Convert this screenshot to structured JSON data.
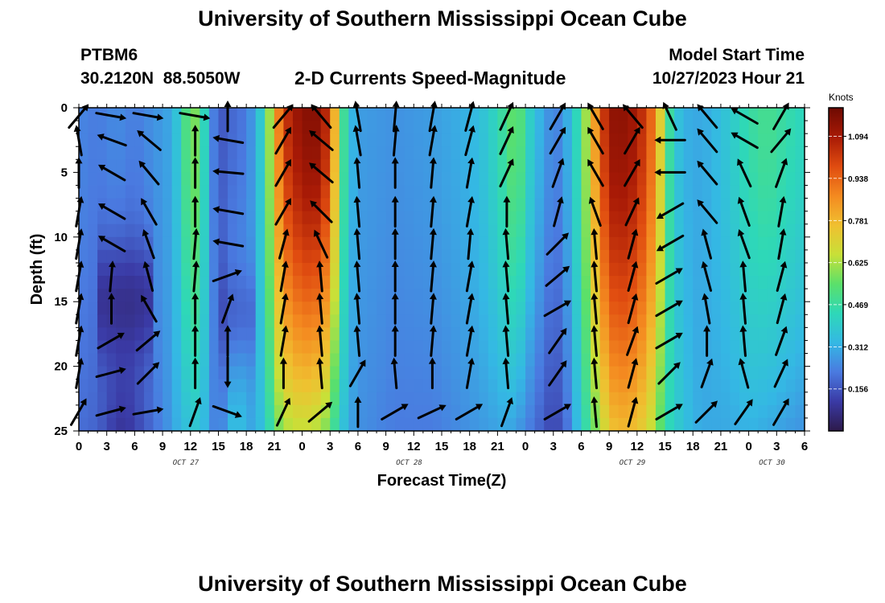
{
  "header": {
    "title": "University of Southern Mississippi Ocean Cube",
    "station": "PTBM6",
    "coords": "30.2120N  88.5050W",
    "chart_title": "2-D Currents Speed-Magnitude",
    "model_label": "Model Start Time",
    "model_time": "10/27/2023 Hour 21"
  },
  "footer": {
    "title": "University of Southern Mississippi Ocean Cube"
  },
  "colors": {
    "scale": [
      "#2d1a4a",
      "#3a3aa5",
      "#4a7ae0",
      "#34b8e4",
      "#2ed8b8",
      "#5be06a",
      "#c8e038",
      "#f0c030",
      "#f48a20",
      "#e04c10",
      "#a81a06",
      "#6e0a02"
    ],
    "arrow": "#000000"
  },
  "chart_data": {
    "type": "heatmap",
    "title": "2-D Currents Speed-Magnitude",
    "xlabel": "Forecast Time(Z)",
    "ylabel": "Depth (ft)",
    "x_ticks": [
      0,
      3,
      6,
      9,
      12,
      15,
      18,
      21,
      24,
      27,
      30,
      33,
      36,
      39,
      42,
      45,
      48,
      51,
      54,
      57,
      60,
      63,
      66,
      69,
      72,
      75,
      78
    ],
    "x_tick_labels": [
      "0",
      "3",
      "6",
      "9",
      "12",
      "15",
      "18",
      "21",
      "0",
      "3",
      "6",
      "9",
      "12",
      "15",
      "18",
      "21",
      "0",
      "3",
      "6",
      "9",
      "12",
      "15",
      "18",
      "21",
      "0",
      "3",
      "6"
    ],
    "date_labels": [
      {
        "label": "OCT 27",
        "x": 11.5
      },
      {
        "label": "OCT 28",
        "x": 35.5
      },
      {
        "label": "OCT 29",
        "x": 59.5
      },
      {
        "label": "OCT 30",
        "x": 74.5
      }
    ],
    "xlim": [
      0,
      78
    ],
    "ylim": [
      0,
      25
    ],
    "y_ticks": [
      0,
      5,
      10,
      15,
      20,
      25
    ],
    "colorbar": {
      "unit": "Knots",
      "range": [
        0.0,
        1.2
      ],
      "ticks": [
        0.156,
        0.312,
        0.469,
        0.625,
        0.781,
        0.938,
        1.094
      ],
      "tick_labels": [
        "0.156",
        "0.312",
        "0.469",
        "0.625",
        "0.781",
        "0.938",
        "1.094"
      ]
    },
    "speed_profile": {
      "hours": [
        0,
        2,
        4,
        5,
        6,
        8,
        10,
        11,
        12,
        13,
        14,
        15,
        16,
        17,
        18,
        19,
        20,
        21,
        22,
        24,
        26,
        27,
        28,
        29,
        30,
        32,
        34,
        36,
        38,
        40,
        42,
        44,
        46,
        47,
        48,
        49,
        50,
        51,
        52,
        53,
        54,
        56,
        57,
        58,
        60,
        62,
        63,
        64,
        65,
        66,
        67,
        68,
        70,
        72,
        74,
        76,
        78
      ],
      "surface_knots": [
        0.24,
        0.22,
        0.25,
        0.24,
        0.22,
        0.26,
        0.3,
        0.42,
        0.6,
        0.55,
        0.3,
        0.15,
        0.18,
        0.2,
        0.22,
        0.3,
        0.46,
        0.76,
        1.02,
        1.15,
        1.15,
        0.98,
        0.6,
        0.36,
        0.28,
        0.27,
        0.26,
        0.27,
        0.28,
        0.3,
        0.32,
        0.38,
        0.5,
        0.58,
        0.46,
        0.34,
        0.3,
        0.22,
        0.26,
        0.36,
        0.5,
        0.95,
        1.12,
        1.15,
        1.1,
        0.88,
        0.56,
        0.38,
        0.32,
        0.3,
        0.3,
        0.32,
        0.38,
        0.46,
        0.5,
        0.46,
        0.42
      ],
      "bottom_knots": [
        0.2,
        0.18,
        0.1,
        0.09,
        0.12,
        0.2,
        0.28,
        0.34,
        0.36,
        0.38,
        0.28,
        0.2,
        0.3,
        0.38,
        0.3,
        0.3,
        0.38,
        0.52,
        0.62,
        0.66,
        0.62,
        0.54,
        0.4,
        0.3,
        0.26,
        0.24,
        0.22,
        0.22,
        0.22,
        0.24,
        0.26,
        0.28,
        0.3,
        0.28,
        0.24,
        0.2,
        0.16,
        0.12,
        0.16,
        0.26,
        0.4,
        0.62,
        0.74,
        0.78,
        0.76,
        0.62,
        0.46,
        0.4,
        0.36,
        0.32,
        0.3,
        0.3,
        0.3,
        0.32,
        0.3,
        0.28,
        0.26
      ]
    },
    "vectors": {
      "hours": [
        0,
        3.5,
        7.5,
        12.5,
        16,
        22,
        26,
        30,
        34,
        38,
        42,
        46,
        51.5,
        55.5,
        59.5,
        63.5,
        67.5,
        71.5,
        75.5
      ],
      "depths_ft": [
        0,
        2.5,
        5,
        8,
        10.5,
        13,
        15.5,
        18,
        20.5,
        23.5
      ],
      "directions_deg": [
        [
          40,
          100,
          100,
          100,
          0,
          40,
          320,
          350,
          5,
          10,
          15,
          25,
          30,
          330,
          320,
          335,
          320,
          300,
          30
        ],
        [
          350,
          290,
          310,
          0,
          280,
          30,
          310,
          350,
          5,
          10,
          15,
          25,
          30,
          330,
          30,
          270,
          320,
          300,
          40
        ],
        [
          0,
          300,
          320,
          0,
          275,
          30,
          310,
          355,
          0,
          5,
          10,
          25,
          20,
          330,
          30,
          270,
          320,
          335,
          20
        ],
        [
          10,
          300,
          330,
          0,
          280,
          30,
          315,
          355,
          0,
          5,
          10,
          0,
          15,
          340,
          25,
          240,
          320,
          340,
          10
        ],
        [
          10,
          300,
          340,
          5,
          280,
          15,
          335,
          355,
          0,
          5,
          5,
          355,
          45,
          355,
          15,
          240,
          345,
          340,
          10
        ],
        [
          10,
          5,
          345,
          5,
          70,
          10,
          355,
          355,
          0,
          5,
          10,
          355,
          50,
          355,
          15,
          60,
          345,
          355,
          15
        ],
        [
          10,
          0,
          330,
          0,
          20,
          10,
          355,
          355,
          0,
          5,
          10,
          355,
          60,
          355,
          15,
          60,
          350,
          355,
          15
        ],
        [
          10,
          60,
          50,
          0,
          0,
          10,
          355,
          355,
          0,
          5,
          10,
          355,
          35,
          355,
          20,
          60,
          0,
          355,
          20
        ],
        [
          10,
          75,
          45,
          0,
          180,
          0,
          355,
          30,
          355,
          0,
          10,
          355,
          35,
          355,
          15,
          45,
          20,
          345,
          25
        ],
        [
          30,
          75,
          80,
          20,
          110,
          25,
          50,
          0,
          60,
          65,
          60,
          20,
          60,
          355,
          15,
          60,
          45,
          35,
          30
        ]
      ]
    }
  }
}
